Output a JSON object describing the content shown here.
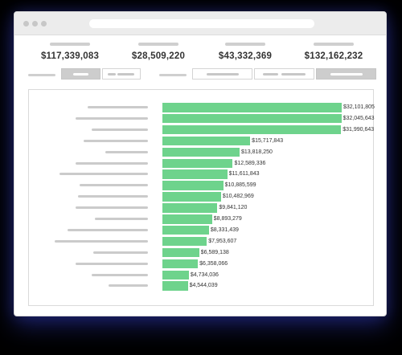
{
  "stats": [
    {
      "value": "$117,339,083"
    },
    {
      "value": "$28,509,220"
    },
    {
      "value": "$43,332,369"
    },
    {
      "value": "$132,162,232"
    }
  ],
  "colors": {
    "bar": "#6ed38c",
    "placeholder": "#cbcbcb",
    "active_segment": "#cdcdcd"
  },
  "chart_data": {
    "type": "bar",
    "orientation": "horizontal",
    "values": [
      32101805,
      32045643,
      31990643,
      15717843,
      13818250,
      12589336,
      11611843,
      10885599,
      10482969,
      9841120,
      8893279,
      8331439,
      7953607,
      6589138,
      6358066,
      4734036,
      4544039
    ],
    "value_labels": [
      "$32,101,805",
      "$32,045,643",
      "$31,990,643",
      "$15,717,843",
      "$13,818,250",
      "$12,589,336",
      "$11,611,843",
      "$10,885,599",
      "$10,482,969",
      "$9,841,120",
      "$8,893,279",
      "$8,331,439",
      "$7,953,607",
      "$6,589,138",
      "$6,358,066",
      "$4,734,036",
      "$4,544,039"
    ],
    "xlim": [
      0,
      32101805
    ],
    "grid": false
  }
}
